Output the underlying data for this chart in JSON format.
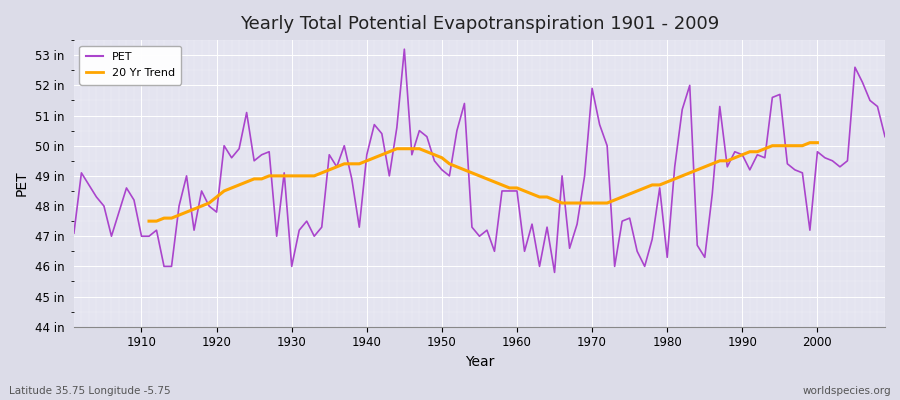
{
  "title": "Yearly Total Potential Evapotranspiration 1901 - 2009",
  "xlabel": "Year",
  "ylabel": "PET",
  "footer_left": "Latitude 35.75 Longitude -5.75",
  "footer_right": "worldspecies.org",
  "pet_color": "#AA44CC",
  "trend_color": "#FFA500",
  "bg_color": "#DCDCE8",
  "plot_bg_color": "#E4E4F0",
  "ylim": [
    44,
    53.5
  ],
  "xlim": [
    1901,
    2009
  ],
  "yticks": [
    44,
    45,
    46,
    47,
    48,
    49,
    50,
    51,
    52,
    53
  ],
  "ytick_labels": [
    "44 in",
    "45 in",
    "46 in",
    "47 in",
    "48 in",
    "49 in",
    "50 in",
    "51 in",
    "52 in",
    "53 in"
  ],
  "years": [
    1901,
    1902,
    1903,
    1904,
    1905,
    1906,
    1907,
    1908,
    1909,
    1910,
    1911,
    1912,
    1913,
    1914,
    1915,
    1916,
    1917,
    1918,
    1919,
    1920,
    1921,
    1922,
    1923,
    1924,
    1925,
    1926,
    1927,
    1928,
    1929,
    1930,
    1931,
    1932,
    1933,
    1934,
    1935,
    1936,
    1937,
    1938,
    1939,
    1940,
    1941,
    1942,
    1943,
    1944,
    1945,
    1946,
    1947,
    1948,
    1949,
    1950,
    1951,
    1952,
    1953,
    1954,
    1955,
    1956,
    1957,
    1958,
    1959,
    1960,
    1961,
    1962,
    1963,
    1964,
    1965,
    1966,
    1967,
    1968,
    1969,
    1970,
    1971,
    1972,
    1973,
    1974,
    1975,
    1976,
    1977,
    1978,
    1979,
    1980,
    1981,
    1982,
    1983,
    1984,
    1985,
    1986,
    1987,
    1988,
    1989,
    1990,
    1991,
    1992,
    1993,
    1994,
    1995,
    1996,
    1997,
    1998,
    1999,
    2000,
    2001,
    2002,
    2003,
    2004,
    2005,
    2006,
    2007,
    2008,
    2009
  ],
  "pet_values": [
    47.1,
    49.1,
    48.7,
    48.3,
    48.0,
    47.0,
    47.8,
    48.6,
    48.2,
    47.0,
    47.0,
    47.2,
    46.0,
    46.0,
    48.0,
    49.0,
    47.2,
    48.5,
    48.0,
    47.8,
    50.0,
    49.6,
    49.9,
    51.1,
    49.5,
    49.7,
    49.8,
    47.0,
    49.1,
    46.0,
    47.2,
    47.5,
    47.0,
    47.3,
    49.7,
    49.3,
    50.0,
    48.9,
    47.3,
    49.7,
    50.7,
    50.4,
    49.0,
    50.6,
    53.2,
    49.7,
    50.5,
    50.3,
    49.5,
    49.2,
    49.0,
    50.5,
    51.4,
    47.3,
    47.0,
    47.2,
    46.5,
    48.5,
    48.5,
    48.5,
    46.5,
    47.4,
    46.0,
    47.3,
    45.8,
    49.0,
    46.6,
    47.4,
    49.0,
    51.9,
    50.7,
    50.0,
    46.0,
    47.5,
    47.6,
    46.5,
    46.0,
    46.9,
    48.6,
    46.3,
    49.3,
    51.2,
    52.0,
    46.7,
    46.3,
    48.4,
    51.3,
    49.3,
    49.8,
    49.7,
    49.2,
    49.7,
    49.6,
    51.6,
    51.7,
    49.4,
    49.2,
    49.1,
    47.2,
    49.8,
    49.6,
    49.5,
    49.3,
    49.5,
    52.6,
    52.1,
    51.5,
    51.3,
    50.3
  ],
  "trend_values": [
    null,
    null,
    null,
    null,
    null,
    null,
    null,
    null,
    null,
    null,
    47.5,
    47.5,
    47.6,
    47.6,
    47.7,
    47.8,
    47.9,
    48.0,
    48.1,
    48.3,
    48.5,
    48.6,
    48.7,
    48.8,
    48.9,
    48.9,
    49.0,
    49.0,
    49.0,
    49.0,
    49.0,
    49.0,
    49.0,
    49.1,
    49.2,
    49.3,
    49.4,
    49.4,
    49.4,
    49.5,
    49.6,
    49.7,
    49.8,
    49.9,
    49.9,
    49.9,
    49.9,
    49.8,
    49.7,
    49.6,
    49.4,
    49.3,
    49.2,
    49.1,
    49.0,
    48.9,
    48.8,
    48.7,
    48.6,
    48.6,
    48.5,
    48.4,
    48.3,
    48.3,
    48.2,
    48.1,
    48.1,
    48.1,
    48.1,
    48.1,
    48.1,
    48.1,
    48.2,
    48.3,
    48.4,
    48.5,
    48.6,
    48.7,
    48.7,
    48.8,
    48.9,
    49.0,
    49.1,
    49.2,
    49.3,
    49.4,
    49.5,
    49.5,
    49.6,
    49.7,
    49.8,
    49.8,
    49.9,
    50.0,
    50.0,
    50.0,
    50.0,
    50.0,
    50.1,
    50.1,
    null,
    null,
    null,
    null,
    null,
    null,
    null,
    null,
    null
  ]
}
